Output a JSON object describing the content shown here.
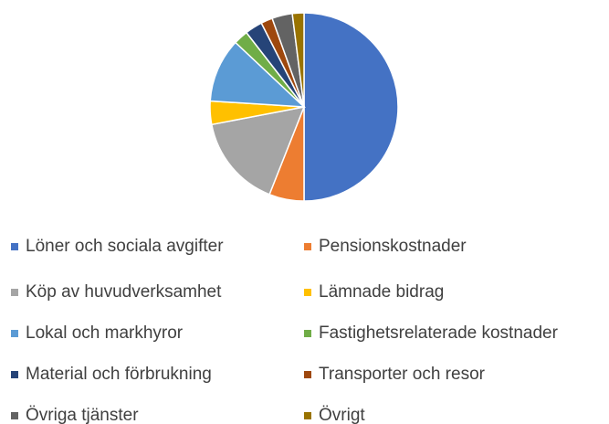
{
  "chart_data": {
    "type": "pie",
    "categories": [
      "Löner och sociala avgifter",
      "Pensionskostnader",
      "Köp av huvudverksamhet",
      "Lämnade bidrag",
      "Lokal och markhyror",
      "Fastighetsrelaterade kostnader",
      "Material och förbrukning",
      "Transporter och resor",
      "Övriga tjänster",
      "Övrigt"
    ],
    "values": [
      50,
      6,
      16,
      4,
      11,
      2.5,
      3,
      2,
      3.5,
      2
    ],
    "colors": [
      "#4472c4",
      "#ed7d31",
      "#a5a5a5",
      "#ffc000",
      "#5b9bd5",
      "#70ad47",
      "#264478",
      "#9e480e",
      "#636363",
      "#997300"
    ],
    "legend": "bottom"
  }
}
